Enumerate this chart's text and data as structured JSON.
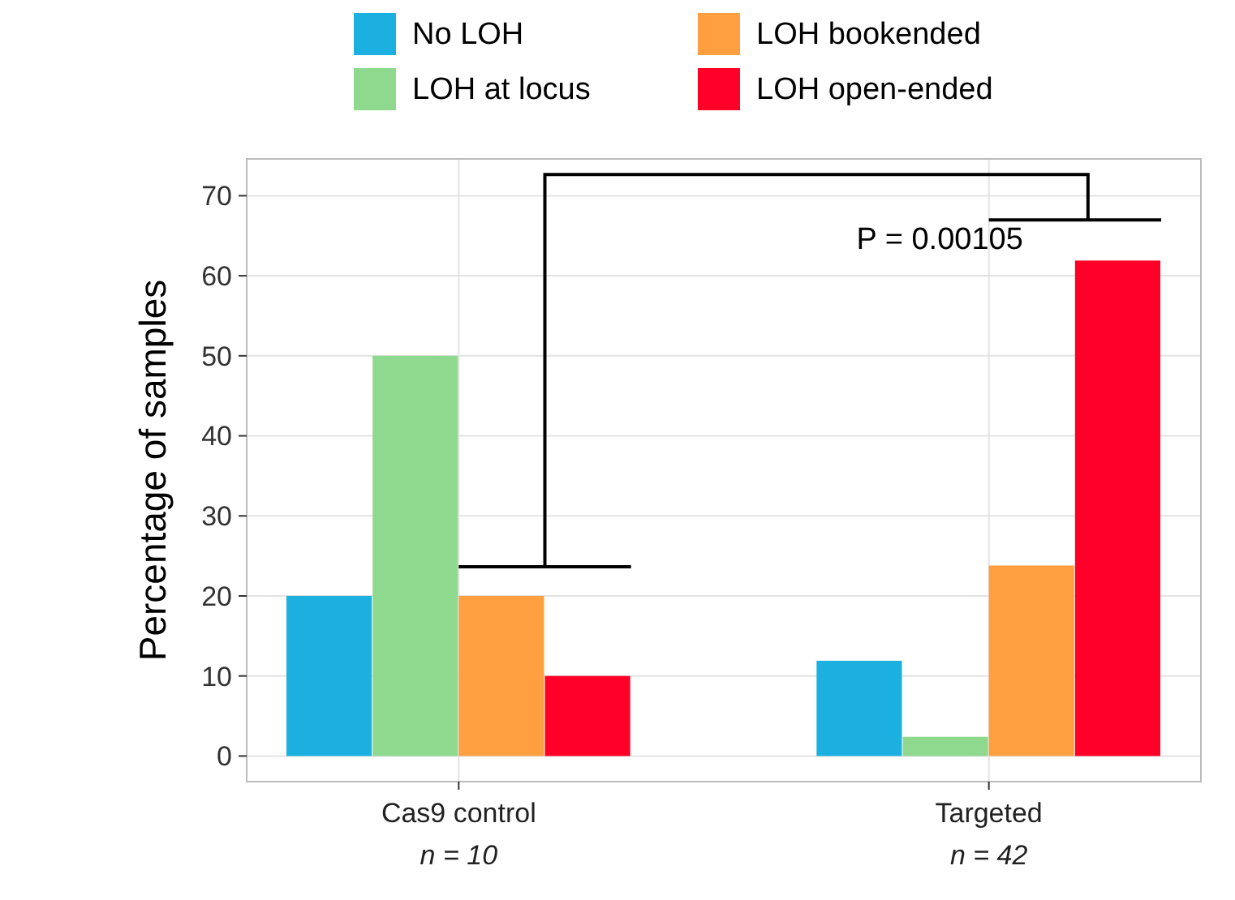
{
  "chart_data": {
    "type": "bar",
    "categories": [
      "Cas9 control\nn = 10",
      "Targeted\nn = 42"
    ],
    "ylabel": "Percentage of samples",
    "series": [
      {
        "name": "No LOH",
        "color": "#1cb0e0",
        "values": [
          20,
          11.9
        ]
      },
      {
        "name": "LOH at locus",
        "color": "#8fd98f",
        "values": [
          50,
          2.4
        ]
      },
      {
        "name": "LOH bookended",
        "color": "#ff9f40",
        "values": [
          20,
          23.8
        ]
      },
      {
        "name": "LOH open-ended",
        "color": "#ff0028",
        "values": [
          10,
          61.9
        ]
      }
    ],
    "ylim": [
      -3.2,
      74.6
    ],
    "yticks": [
      0,
      10,
      20,
      30,
      40,
      50,
      60,
      70
    ],
    "grid": true,
    "legend": "top",
    "annotations": [
      "P = 0.00105"
    ]
  }
}
